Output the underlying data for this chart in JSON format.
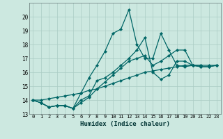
{
  "xlabel": "Humidex (Indice chaleur)",
  "ylabel": "",
  "bg_color": "#cce8e0",
  "line_color": "#006666",
  "grid_color": "#aaccc4",
  "ylim": [
    13,
    21
  ],
  "xlim": [
    -0.5,
    23.5
  ],
  "yticks": [
    13,
    14,
    15,
    16,
    17,
    18,
    19,
    20
  ],
  "xticks": [
    0,
    1,
    2,
    3,
    4,
    5,
    6,
    7,
    8,
    9,
    10,
    11,
    12,
    13,
    14,
    15,
    16,
    17,
    18,
    19,
    20,
    21,
    22,
    23
  ],
  "series": [
    [
      14.0,
      13.8,
      13.5,
      13.6,
      13.6,
      13.4,
      14.5,
      15.6,
      16.5,
      17.5,
      18.8,
      19.1,
      20.5,
      18.0,
      17.0,
      17.0,
      18.8,
      17.6,
      16.5,
      16.4,
      16.5,
      16.5,
      null,
      null
    ],
    [
      14.0,
      13.8,
      13.5,
      13.6,
      13.6,
      13.4,
      13.8,
      14.2,
      14.8,
      15.3,
      15.8,
      16.3,
      16.8,
      17.0,
      17.2,
      16.5,
      16.8,
      17.2,
      17.6,
      17.6,
      16.5,
      16.4,
      16.4,
      16.5
    ],
    [
      14.0,
      13.8,
      13.5,
      13.6,
      13.6,
      13.4,
      14.0,
      14.3,
      15.4,
      15.6,
      16.0,
      16.5,
      17.0,
      17.6,
      18.5,
      16.0,
      15.5,
      15.8,
      16.8,
      16.8,
      16.5,
      16.4,
      16.4,
      16.5
    ],
    [
      14.0,
      14.0,
      14.1,
      14.2,
      14.3,
      14.4,
      14.5,
      14.7,
      14.8,
      15.0,
      15.2,
      15.4,
      15.6,
      15.8,
      16.0,
      16.1,
      16.2,
      16.3,
      16.4,
      16.5,
      16.5,
      16.5,
      16.5,
      16.5
    ]
  ]
}
